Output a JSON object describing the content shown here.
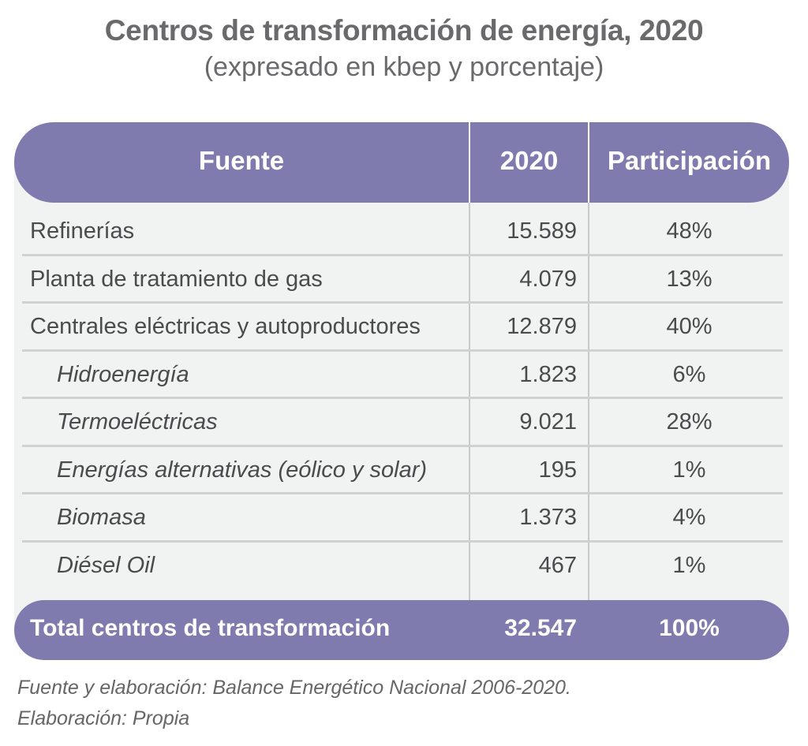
{
  "title": "Centros de transformación de energía, 2020",
  "subtitle": "(expresado en kbep y porcentaje)",
  "colors": {
    "accent": "#807bae",
    "body_bg": "#f1f2f2",
    "text": "#4b4b4d",
    "title": "#6a6a6c"
  },
  "table": {
    "headers": [
      "Fuente",
      "2020",
      "Participación"
    ],
    "rows": [
      {
        "fuente": "Refinerías",
        "valor": "15.589",
        "participacion": "48%",
        "indent": false
      },
      {
        "fuente": "Planta de tratamiento de gas",
        "valor": "4.079",
        "participacion": "13%",
        "indent": false
      },
      {
        "fuente": "Centrales eléctricas y autoproductores",
        "valor": "12.879",
        "participacion": "40%",
        "indent": false
      },
      {
        "fuente": "Hidroenergía",
        "valor": "1.823",
        "participacion": "6%",
        "indent": true
      },
      {
        "fuente": "Termoeléctricas",
        "valor": "9.021",
        "participacion": "28%",
        "indent": true
      },
      {
        "fuente": "Energías alternativas (eólico y solar)",
        "valor": "195",
        "participacion": "1%",
        "indent": true
      },
      {
        "fuente": "Biomasa",
        "valor": "1.373",
        "participacion": "4%",
        "indent": true
      },
      {
        "fuente": "Diésel Oil",
        "valor": "467",
        "participacion": "1%",
        "indent": true
      }
    ],
    "total": {
      "fuente": "Total centros de transformación",
      "valor": "32.547",
      "participacion": "100%"
    }
  },
  "footer": {
    "line1": "Fuente y elaboración: Balance Energético Nacional 2006-2020.",
    "line2": "Elaboración: Propia"
  }
}
